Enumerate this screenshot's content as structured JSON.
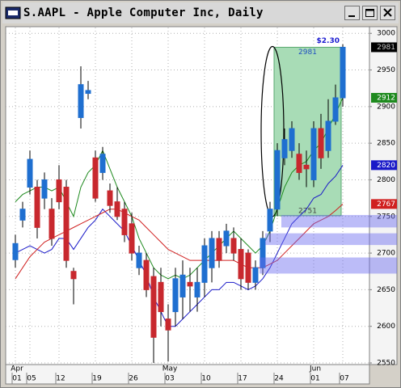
{
  "chart_data": {
    "type": "candlestick",
    "title": "S.AAPL - Apple Computer Inc, Daily",
    "categories": [
      "01",
      null,
      "05",
      null,
      null,
      null,
      "12",
      null,
      null,
      null,
      null,
      "19",
      null,
      null,
      null,
      null,
      "26",
      null,
      null,
      null,
      null,
      "03",
      null,
      null,
      null,
      null,
      "10",
      null,
      null,
      null,
      null,
      "17",
      null,
      null,
      null,
      null,
      "24",
      null,
      null,
      null,
      null,
      "01",
      null,
      null,
      null,
      "07"
    ],
    "months": [
      "Apr",
      null,
      null,
      null,
      null,
      null,
      null,
      null,
      null,
      null,
      null,
      null,
      null,
      null,
      null,
      null,
      null,
      null,
      null,
      null,
      null,
      "May",
      null,
      null,
      null,
      null,
      null,
      null,
      null,
      null,
      null,
      null,
      null,
      null,
      null,
      null,
      null,
      null,
      null,
      null,
      null,
      "Jun",
      null,
      null,
      null,
      null
    ],
    "open": [
      2691,
      2745,
      2790,
      2790,
      2775,
      2760,
      2800,
      2790,
      2675,
      2885,
      2918,
      2830,
      2810,
      2785,
      2770,
      2760,
      2740,
      2680,
      2690,
      2668,
      2660,
      2610,
      2620,
      2640,
      2660,
      2640,
      2660,
      2680,
      2720,
      2710,
      2720,
      2705,
      2700,
      2660,
      2680,
      2730,
      2760,
      2830,
      2840,
      2835,
      2820,
      2800,
      2870,
      2840,
      2880,
      2912
    ],
    "high": [
      2725,
      2770,
      2840,
      2800,
      2810,
      2775,
      2820,
      2800,
      2680,
      2955,
      2935,
      2840,
      2845,
      2795,
      2790,
      2770,
      2755,
      2710,
      2700,
      2680,
      2680,
      2630,
      2680,
      2690,
      2680,
      2680,
      2720,
      2730,
      2730,
      2740,
      2735,
      2720,
      2705,
      2690,
      2730,
      2770,
      2850,
      2870,
      2880,
      2850,
      2840,
      2880,
      2890,
      2910,
      2930,
      2985
    ],
    "low": [
      2680,
      2735,
      2780,
      2720,
      2760,
      2710,
      2760,
      2680,
      2630,
      2870,
      2910,
      2770,
      2800,
      2755,
      2745,
      2715,
      2690,
      2670,
      2640,
      2550,
      2600,
      2552,
      2600,
      2610,
      2620,
      2620,
      2640,
      2660,
      2680,
      2700,
      2690,
      2650,
      2650,
      2650,
      2670,
      2715,
      2751,
      2820,
      2830,
      2800,
      2790,
      2790,
      2815,
      2830,
      2875,
      2900
    ],
    "close": [
      2713,
      2760,
      2828,
      2735,
      2800,
      2720,
      2770,
      2690,
      2665,
      2930,
      2922,
      2775,
      2835,
      2765,
      2750,
      2725,
      2700,
      2700,
      2650,
      2585,
      2620,
      2595,
      2665,
      2670,
      2655,
      2660,
      2710,
      2720,
      2690,
      2730,
      2700,
      2665,
      2660,
      2680,
      2720,
      2760,
      2840,
      2855,
      2870,
      2810,
      2815,
      2870,
      2830,
      2880,
      2912,
      2981
    ],
    "up_color": "#1f6fd0",
    "down_color": "#c8282e",
    "overlays": [
      {
        "color": "#1e8a1e",
        "values": [
          2770,
          2780,
          2785,
          2790,
          2790,
          2785,
          2790,
          2770,
          2750,
          2790,
          2810,
          2820,
          2840,
          2815,
          2790,
          2770,
          2750,
          2720,
          2700,
          2680,
          2670,
          2665,
          2670,
          2665,
          2670,
          2680,
          2690,
          2700,
          2710,
          2720,
          2730,
          2720,
          2710,
          2700,
          2710,
          2730,
          2760,
          2790,
          2810,
          2820,
          2825,
          2840,
          2850,
          2870,
          2890,
          2912
        ]
      },
      {
        "color": "#1a1ac8",
        "values": [
          2700,
          2705,
          2710,
          2705,
          2700,
          2705,
          2720,
          2720,
          2705,
          2720,
          2735,
          2745,
          2760,
          2750,
          2740,
          2730,
          2710,
          2690,
          2670,
          2640,
          2620,
          2600,
          2600,
          2610,
          2620,
          2630,
          2640,
          2650,
          2650,
          2660,
          2660,
          2655,
          2650,
          2655,
          2665,
          2680,
          2700,
          2720,
          2740,
          2750,
          2760,
          2775,
          2780,
          2795,
          2805,
          2820
        ]
      },
      {
        "color": "#d02020",
        "values": [
          2665,
          2680,
          2695,
          2705,
          2715,
          2720,
          2725,
          2730,
          2735,
          2740,
          2745,
          2750,
          2755,
          2760,
          2760,
          2755,
          2750,
          2745,
          2735,
          2725,
          2715,
          2705,
          2700,
          2695,
          2690,
          2690,
          2690,
          2690,
          2690,
          2690,
          2690,
          2685,
          2680,
          2680,
          2680,
          2685,
          2690,
          2700,
          2710,
          2720,
          2730,
          2740,
          2745,
          2750,
          2758,
          2767
        ]
      }
    ],
    "range": {
      "high": 2981,
      "low": 2751,
      "label": "$2.30",
      "color": "#a8dcb6"
    },
    "zones": [
      [
        2735,
        2752
      ],
      [
        2711,
        2727
      ],
      [
        2672,
        2694
      ]
    ],
    "zone_color": "#6b6bf0",
    "ylim": [
      2550,
      3008
    ],
    "yticks": [
      3000,
      2950,
      2900,
      2850,
      2800,
      2750,
      2700,
      2650,
      2600,
      2550
    ],
    "grid": true
  }
}
